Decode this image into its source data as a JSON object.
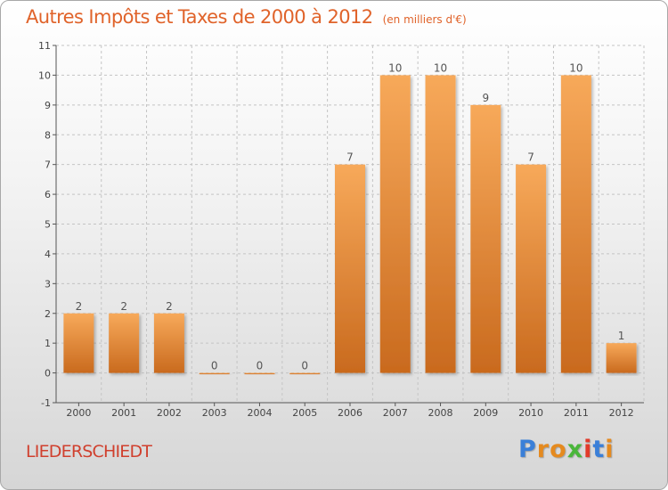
{
  "header": {
    "title": "Autres Impôts et Taxes de 2000 à 2012",
    "unit": "(en milliers d'€)"
  },
  "commune": "LIEDERSCHIEDT",
  "logo": {
    "text": "Proxiti",
    "letters": [
      {
        "ch": "P",
        "color": "#3a7fd8"
      },
      {
        "ch": "r",
        "color": "#e58a1f"
      },
      {
        "ch": "o",
        "color": "#e58a1f"
      },
      {
        "ch": "x",
        "color": "#4ab63a"
      },
      {
        "ch": "i",
        "color": "#e23a2a"
      },
      {
        "ch": "t",
        "color": "#3a7fd8"
      },
      {
        "ch": "i",
        "color": "#e58a1f"
      }
    ]
  },
  "colors": {
    "bar_top": "#f7a95a",
    "bar_bottom": "#c96a1e",
    "title": "#e0632a",
    "commune": "#d0402e"
  },
  "chart_data": {
    "type": "bar",
    "title": "Autres Impôts et Taxes de 2000 à 2012",
    "subtitle": "(en milliers d'€)",
    "categories": [
      "2000",
      "2001",
      "2002",
      "2003",
      "2004",
      "2005",
      "2006",
      "2007",
      "2008",
      "2009",
      "2010",
      "2011",
      "2012"
    ],
    "values": [
      2,
      2,
      2,
      0,
      0,
      0,
      7,
      10,
      10,
      9,
      7,
      10,
      1
    ],
    "ylim": [
      -1,
      11
    ],
    "yticks": [
      -1,
      0,
      1,
      2,
      3,
      4,
      5,
      6,
      7,
      8,
      9,
      10,
      11
    ],
    "grid": "horizontal dashed",
    "legend": "none"
  }
}
